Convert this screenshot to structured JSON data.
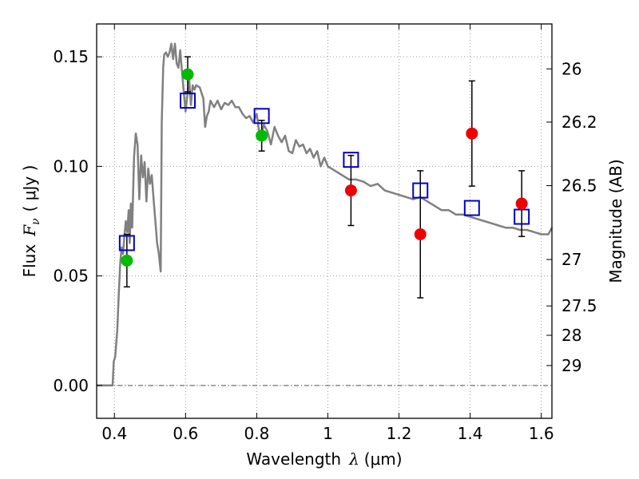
{
  "chart_data": {
    "type": "scatter",
    "xlabel": {
      "prefix": "Wavelength",
      "symbol": "λ",
      "unit": "(μm)"
    },
    "ylabel": {
      "prefix": "Flux",
      "symbol": "F",
      "sub": "ν",
      "unit": "( μJy )"
    },
    "ylabel_right": "Magnitude (AB)",
    "xlim": [
      0.35,
      1.63
    ],
    "ylim": [
      -0.015,
      0.165
    ],
    "x_ticks": [
      0.4,
      0.6,
      0.8,
      1.0,
      1.2,
      1.4,
      1.6
    ],
    "x_tick_labels": [
      "0.4",
      "0.6",
      "0.8",
      "1",
      "1.2",
      "1.4",
      "1.6"
    ],
    "y_ticks": [
      0.0,
      0.05,
      0.1,
      0.15
    ],
    "y_tick_labels": [
      "0.00",
      "0.05",
      "0.10",
      "0.15"
    ],
    "right_ticks": [
      {
        "label": "26",
        "flux": 0.1445
      },
      {
        "label": "26.2",
        "flux": 0.1202
      },
      {
        "label": "26.5",
        "flux": 0.0912
      },
      {
        "label": "27",
        "flux": 0.0575
      },
      {
        "label": "27.5",
        "flux": 0.0363
      },
      {
        "label": "28",
        "flux": 0.0229
      },
      {
        "label": "29",
        "flux": 0.0091
      }
    ],
    "grid": true,
    "zero_line": true,
    "colors": {
      "model": "#808080",
      "space": "#00bb00",
      "ground": "#ee0000",
      "synthetic": "#0000cc",
      "errorbar": "#000000"
    },
    "model_sed": {
      "x": [
        0.35,
        0.395,
        0.398,
        0.402,
        0.408,
        0.412,
        0.416,
        0.42,
        0.424,
        0.428,
        0.432,
        0.436,
        0.44,
        0.443,
        0.446,
        0.45,
        0.455,
        0.46,
        0.465,
        0.47,
        0.475,
        0.48,
        0.485,
        0.49,
        0.495,
        0.5,
        0.505,
        0.51,
        0.515,
        0.52,
        0.525,
        0.53,
        0.533,
        0.537,
        0.54,
        0.545,
        0.55,
        0.555,
        0.56,
        0.565,
        0.57,
        0.575,
        0.58,
        0.585,
        0.59,
        0.6,
        0.61,
        0.615,
        0.62,
        0.625,
        0.63,
        0.64,
        0.65,
        0.655,
        0.66,
        0.665,
        0.67,
        0.68,
        0.69,
        0.7,
        0.71,
        0.72,
        0.73,
        0.74,
        0.75,
        0.76,
        0.77,
        0.78,
        0.79,
        0.8,
        0.81,
        0.82,
        0.83,
        0.84,
        0.85,
        0.86,
        0.87,
        0.88,
        0.89,
        0.9,
        0.91,
        0.92,
        0.93,
        0.94,
        0.95,
        0.96,
        0.97,
        0.98,
        0.99,
        1.0,
        1.02,
        1.04,
        1.06,
        1.08,
        1.1,
        1.12,
        1.14,
        1.16,
        1.18,
        1.2,
        1.22,
        1.24,
        1.26,
        1.28,
        1.3,
        1.32,
        1.34,
        1.36,
        1.38,
        1.4,
        1.42,
        1.44,
        1.46,
        1.48,
        1.5,
        1.52,
        1.54,
        1.56,
        1.58,
        1.6,
        1.62,
        1.63
      ],
      "y": [
        0.0,
        0.0,
        0.011,
        0.013,
        0.025,
        0.041,
        0.055,
        0.063,
        0.06,
        0.068,
        0.075,
        0.07,
        0.08,
        0.065,
        0.083,
        0.072,
        0.104,
        0.115,
        0.11,
        0.085,
        0.105,
        0.095,
        0.102,
        0.084,
        0.099,
        0.092,
        0.096,
        0.085,
        0.075,
        0.065,
        0.06,
        0.052,
        0.12,
        0.145,
        0.151,
        0.152,
        0.15,
        0.152,
        0.156,
        0.149,
        0.156,
        0.147,
        0.145,
        0.153,
        0.143,
        0.125,
        0.14,
        0.128,
        0.137,
        0.135,
        0.137,
        0.136,
        0.131,
        0.118,
        0.123,
        0.125,
        0.13,
        0.127,
        0.13,
        0.126,
        0.129,
        0.128,
        0.13,
        0.127,
        0.127,
        0.124,
        0.122,
        0.123,
        0.12,
        0.124,
        0.112,
        0.119,
        0.116,
        0.11,
        0.118,
        0.114,
        0.111,
        0.114,
        0.107,
        0.106,
        0.112,
        0.109,
        0.11,
        0.106,
        0.108,
        0.104,
        0.107,
        0.1,
        0.104,
        0.1,
        0.098,
        0.096,
        0.094,
        0.094,
        0.093,
        0.091,
        0.092,
        0.089,
        0.088,
        0.087,
        0.086,
        0.085,
        0.086,
        0.084,
        0.082,
        0.08,
        0.08,
        0.078,
        0.078,
        0.077,
        0.076,
        0.075,
        0.074,
        0.073,
        0.072,
        0.072,
        0.071,
        0.071,
        0.07,
        0.069,
        0.069,
        0.072
      ]
    },
    "space_points": [
      {
        "x": 0.435,
        "y": 0.057,
        "err": 0.012
      },
      {
        "x": 0.606,
        "y": 0.142,
        "err": 0.008
      },
      {
        "x": 0.814,
        "y": 0.114,
        "err": 0.007
      }
    ],
    "ground_points": [
      {
        "x": 1.065,
        "y": 0.089,
        "err": 0.016
      },
      {
        "x": 1.26,
        "y": 0.069,
        "err": 0.029
      },
      {
        "x": 1.405,
        "y": 0.115,
        "err": 0.024
      },
      {
        "x": 1.545,
        "y": 0.083,
        "err": 0.015
      }
    ],
    "synthetic_points": [
      {
        "x": 0.435,
        "y": 0.065
      },
      {
        "x": 0.606,
        "y": 0.13
      },
      {
        "x": 0.814,
        "y": 0.123
      },
      {
        "x": 1.065,
        "y": 0.103
      },
      {
        "x": 1.26,
        "y": 0.089
      },
      {
        "x": 1.405,
        "y": 0.081
      },
      {
        "x": 1.545,
        "y": 0.077
      }
    ]
  }
}
